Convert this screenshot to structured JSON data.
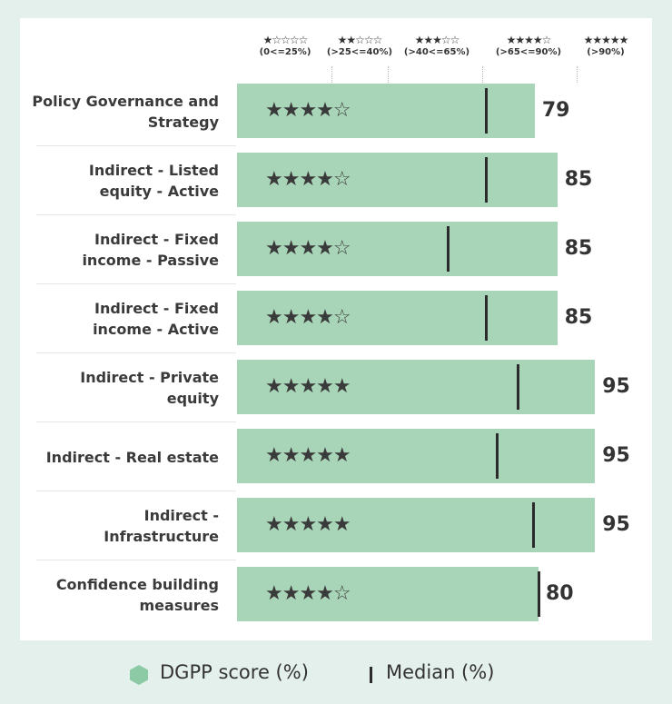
{
  "chart_data": {
    "type": "bar",
    "title": "",
    "xlim": [
      0,
      100
    ],
    "bands": [
      {
        "stars": 1,
        "label": "(0<=25%)",
        "upper": 25
      },
      {
        "stars": 2,
        "label": "(>25<=40%)",
        "upper": 40
      },
      {
        "stars": 3,
        "label": "(>40<=65%)",
        "upper": 65
      },
      {
        "stars": 4,
        "label": "(>65<=90%)",
        "upper": 90
      },
      {
        "stars": 5,
        "label": "(>90%)",
        "upper": 100
      }
    ],
    "categories": [
      "Policy Governance and Strategy",
      "Indirect - Listed equity - Active",
      "Indirect - Fixed income - Passive",
      "Indirect - Fixed income - Active",
      "Indirect - Private equity",
      "Indirect - Real estate",
      "Indirect - Infrastructure",
      "Confidence building measures"
    ],
    "label_lines": [
      [
        "Policy Governance and",
        "Strategy"
      ],
      [
        "Indirect - Listed",
        "equity - Active"
      ],
      [
        "Indirect - Fixed",
        "income - Passive"
      ],
      [
        "Indirect - Fixed",
        "income - Active"
      ],
      [
        "Indirect - Private equity"
      ],
      [
        "Indirect - Real estate"
      ],
      [
        "Indirect - Infrastructure"
      ],
      [
        "Confidence building",
        "measures"
      ]
    ],
    "series": [
      {
        "name": "DGPP score (%)",
        "values": [
          79,
          85,
          85,
          85,
          95,
          95,
          95,
          80
        ],
        "stars": [
          4,
          4,
          4,
          4,
          5,
          5,
          5,
          4
        ]
      },
      {
        "name": "Median (%)",
        "values": [
          66,
          66,
          56,
          66,
          74.5,
          69,
          78.5,
          80
        ]
      }
    ],
    "legend": {
      "score": "DGPP score (%)",
      "median": "Median (%)",
      "placement": "bottom"
    },
    "colors": {
      "bar": "#a8d5b8",
      "median": "#2b2b2b",
      "legend_marker": "#8ccaa6"
    }
  }
}
